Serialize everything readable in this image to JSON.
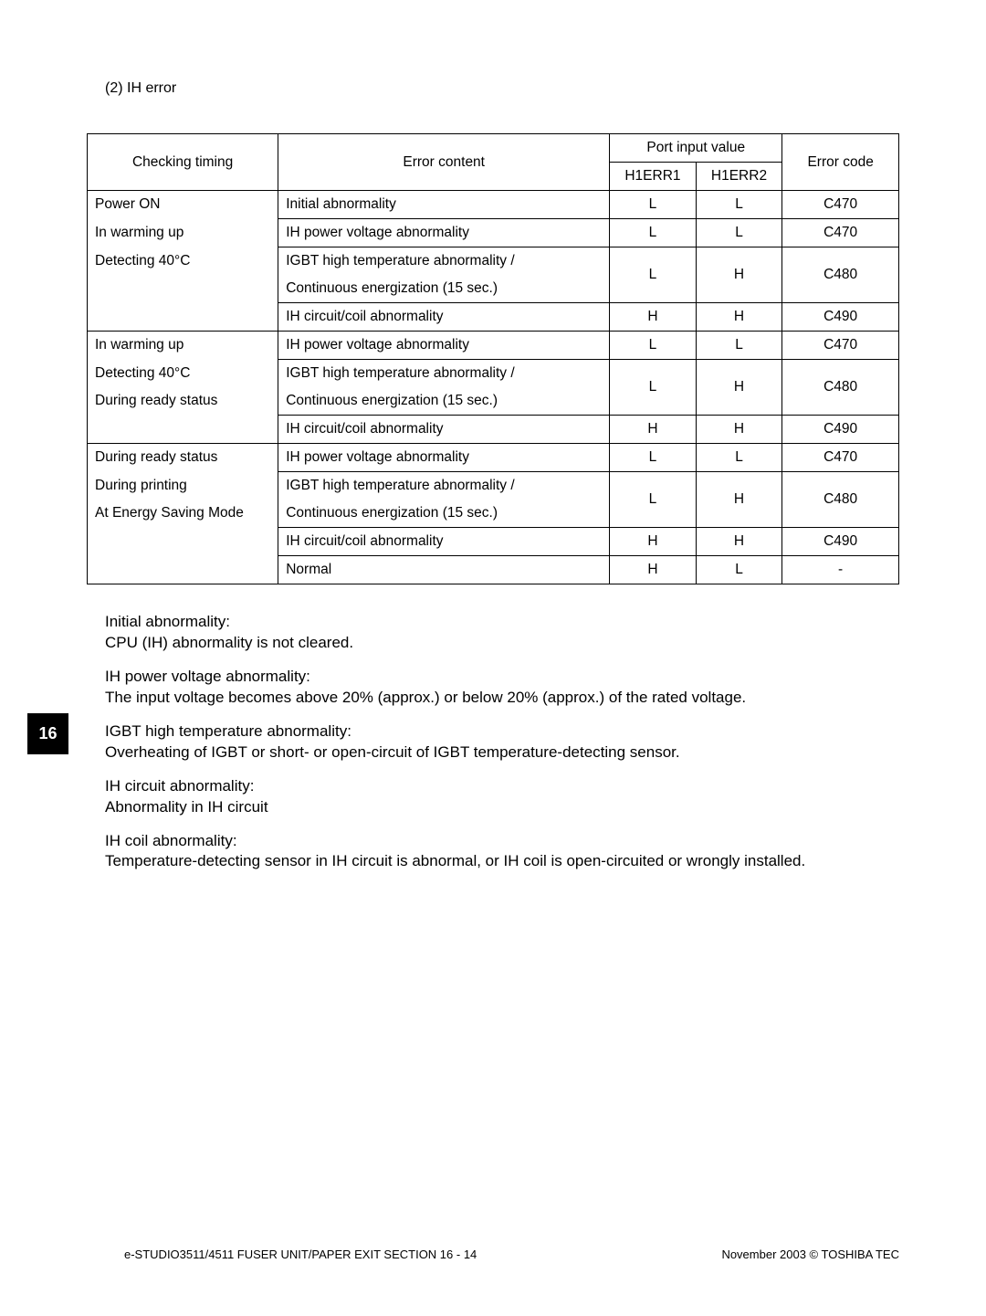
{
  "section_heading": "(2)  IH error",
  "table": {
    "header": {
      "checking_timing": "Checking timing",
      "error_content": "Error content",
      "port_input_value": "Port input value",
      "h1err1": "H1ERR1",
      "h1err2": "H1ERR2",
      "error_code": "Error code"
    },
    "groups": [
      {
        "timing_lines": [
          "Power ON",
          "In warming up",
          "Detecting 40°C"
        ],
        "rows": [
          {
            "content": "Initial abnormality",
            "h1": "L",
            "h2": "L",
            "code": "C470"
          },
          {
            "content": "IH power voltage abnormality",
            "h1": "L",
            "h2": "L",
            "code": "C470"
          },
          {
            "content_lines": [
              "IGBT high temperature abnormality /",
              "Continuous energization (15 sec.)"
            ],
            "h1": "L",
            "h2": "H",
            "code": "C480"
          },
          {
            "content": "IH circuit/coil abnormality",
            "h1": "H",
            "h2": "H",
            "code": "C490"
          }
        ]
      },
      {
        "timing_lines": [
          "In warming up",
          "Detecting 40°C",
          "During ready status"
        ],
        "rows": [
          {
            "content": "IH power voltage abnormality",
            "h1": "L",
            "h2": "L",
            "code": "C470"
          },
          {
            "content_lines": [
              "IGBT high temperature abnormality /",
              "Continuous energization (15 sec.)"
            ],
            "h1": "L",
            "h2": "H",
            "code": "C480"
          },
          {
            "content": "IH circuit/coil abnormality",
            "h1": "H",
            "h2": "H",
            "code": "C490"
          }
        ]
      },
      {
        "timing_lines": [
          "During ready status",
          "During printing",
          "At Energy Saving Mode"
        ],
        "rows": [
          {
            "content": "IH power voltage abnormality",
            "h1": "L",
            "h2": "L",
            "code": "C470"
          },
          {
            "content_lines": [
              "IGBT high temperature abnormality /",
              "Continuous energization (15 sec.)"
            ],
            "h1": "L",
            "h2": "H",
            "code": "C480"
          },
          {
            "content": "IH circuit/coil abnormality",
            "h1": "H",
            "h2": "H",
            "code": "C490"
          },
          {
            "content": "Normal",
            "h1": "H",
            "h2": "L",
            "code": "-"
          }
        ]
      }
    ]
  },
  "definitions": [
    {
      "title": "Initial abnormality:",
      "text": "CPU (IH) abnormality is not cleared."
    },
    {
      "title": "IH power voltage abnormality:",
      "text": "The input voltage becomes above 20% (approx.) or below 20% (approx.) of the rated voltage."
    },
    {
      "title": "IGBT high temperature abnormality:",
      "text": "Overheating of IGBT or short- or open-circuit of IGBT temperature-detecting sensor."
    },
    {
      "title": "IH circuit abnormality:",
      "text": "Abnormality in IH circuit"
    },
    {
      "title": "IH coil abnormality:",
      "text": "Temperature-detecting sensor in IH circuit is abnormal, or IH coil is open-circuited or wrongly installed."
    }
  ],
  "side_tab": "16",
  "footer": {
    "left": "e-STUDIO3511/4511 FUSER UNIT/PAPER EXIT SECTION    16 - 14",
    "right": "November 2003 © TOSHIBA TEC"
  }
}
